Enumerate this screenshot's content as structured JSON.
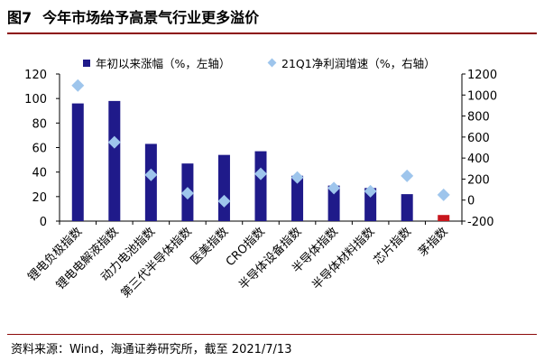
{
  "figure": {
    "number": "图7",
    "title": "今年市场给予高景气行业更多溢价",
    "source": "资料来源：Wind，海通证券研究所，截至 2021/7/13"
  },
  "colors": {
    "bar": "#1f1a8a",
    "bar_highlight": "#c8161d",
    "marker": "#9ec5ec",
    "rule": "#8c0b0b"
  },
  "chart_data": {
    "type": "bar",
    "categories": [
      "锂电负极指数",
      "锂电电解液指数",
      "动力电池指数",
      "第三代半导体指数",
      "医美指数",
      "CRO指数",
      "半导体设备指数",
      "半导体指数",
      "半导体材料指数",
      "芯片指数",
      "茅指数"
    ],
    "series": [
      {
        "name": "年初以来涨幅（%，左轴）",
        "type": "bar",
        "axis": "left",
        "values": [
          96,
          98,
          63,
          47,
          54,
          57,
          37,
          29,
          27,
          22,
          5
        ]
      },
      {
        "name": "21Q1净利润增速（%，右轴）",
        "type": "scatter",
        "axis": "right",
        "values": [
          1090,
          550,
          240,
          65,
          -10,
          250,
          215,
          115,
          85,
          230,
          50
        ]
      }
    ],
    "highlight_category": "茅指数",
    "y_left": {
      "lim": [
        0,
        120
      ],
      "ticks": [
        "0",
        "20",
        "40",
        "60",
        "80",
        "100",
        "120"
      ]
    },
    "y_right": {
      "lim": [
        -200,
        1200
      ],
      "ticks": [
        "-200",
        "0",
        "200",
        "400",
        "600",
        "800",
        "1000",
        "1200"
      ]
    },
    "grid": false,
    "legend_position": "top"
  }
}
